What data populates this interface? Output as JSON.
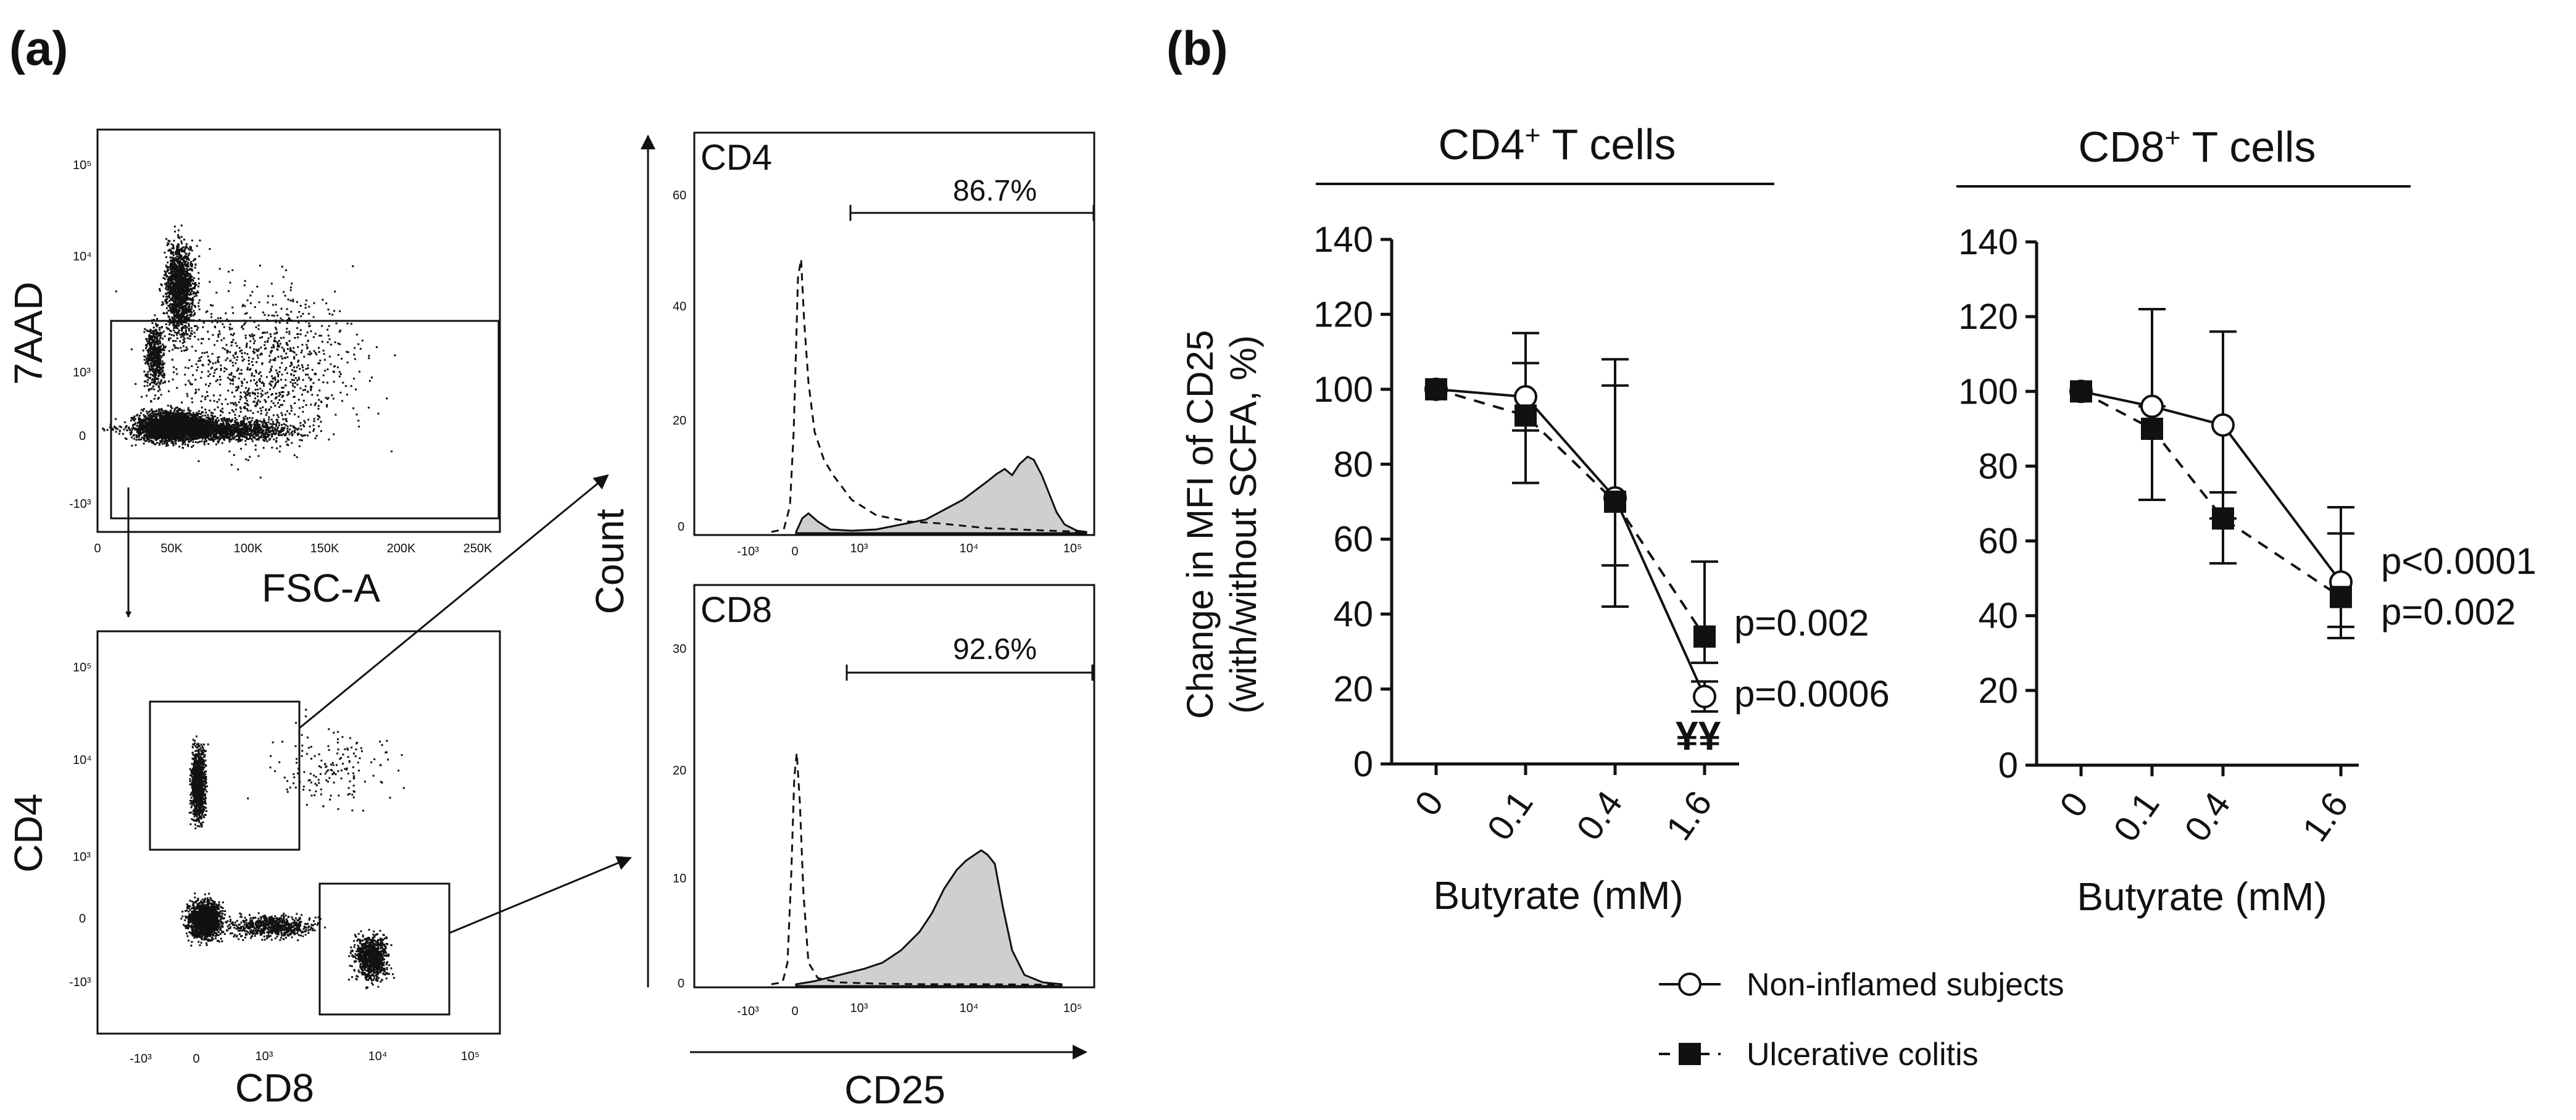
{
  "panel_labels": {
    "a": "(a)",
    "b": "(b)"
  },
  "flow": {
    "viability_plot": {
      "ylabel": "7AAD",
      "xlabel": "FSC-A",
      "yticks": [
        "10⁵",
        "10⁴",
        "10³",
        "0",
        "-10³"
      ],
      "xticks": [
        "0",
        "50K",
        "100K",
        "150K",
        "200K",
        "250K"
      ]
    },
    "cd4cd8_plot": {
      "ylabel": "CD4",
      "xlabel": "CD8",
      "yticks": [
        "10⁵",
        "10⁴",
        "10³",
        "0",
        "-10³"
      ],
      "xticks": [
        "-10³",
        "0",
        "10³",
        "10⁴",
        "10⁵"
      ]
    },
    "hist_cd4": {
      "label": "CD4",
      "gate_percent": "86.7%",
      "yticks": [
        "60",
        "40",
        "20",
        "0"
      ],
      "xticks": [
        "-10³",
        "0",
        "10³",
        "10⁴",
        "10⁵"
      ]
    },
    "hist_cd8": {
      "label": "CD8",
      "gate_percent": "92.6%",
      "yticks": [
        "30",
        "20",
        "10",
        "0"
      ],
      "xticks": [
        "-10³",
        "0",
        "10³",
        "10⁴",
        "10⁵"
      ]
    },
    "hist_ylabel": "Count",
    "hist_xlabel": "CD25"
  },
  "chart_data": [
    {
      "type": "line",
      "title_base": "CD4",
      "title_sup": "+",
      "title_rest": " T cells",
      "ylabel": "Change in MFI of CD25",
      "ylabel2": "(with/without SCFA, %)",
      "xlabel": "Butyrate (mM)",
      "categories": [
        "0",
        "0.1",
        "0.4",
        "1.6"
      ],
      "ylim": [
        0,
        140
      ],
      "yticks": [
        0,
        20,
        40,
        60,
        80,
        100,
        120,
        140
      ],
      "series": [
        {
          "name": "Non-inflamed subjects",
          "values": [
            100,
            98,
            71,
            18
          ],
          "err_lo": [
            100,
            89,
            42,
            14
          ],
          "err_hi": [
            100,
            115,
            108,
            22
          ]
        },
        {
          "name": "Ulcerative colitis",
          "values": [
            100,
            93,
            70,
            34
          ],
          "err_lo": [
            100,
            75,
            53,
            27
          ],
          "err_hi": [
            100,
            107,
            101,
            54
          ]
        }
      ],
      "annotations": [
        "p=0.002",
        "p=0.0006",
        "¥¥"
      ]
    },
    {
      "type": "line",
      "title_base": "CD8",
      "title_sup": "+",
      "title_rest": " T cells",
      "xlabel": "Butyrate (mM)",
      "categories": [
        "0",
        "0.1",
        "0.4",
        "1.6"
      ],
      "ylim": [
        0,
        140
      ],
      "yticks": [
        0,
        20,
        40,
        60,
        80,
        100,
        120,
        140
      ],
      "series": [
        {
          "name": "Non-inflamed subjects",
          "values": [
            100,
            96,
            91,
            49
          ],
          "err_lo": [
            100,
            71,
            66,
            37
          ],
          "err_hi": [
            100,
            122,
            116,
            62
          ]
        },
        {
          "name": "Ulcerative colitis",
          "values": [
            100,
            90,
            66,
            45
          ],
          "err_lo": [
            100,
            71,
            54,
            34
          ],
          "err_hi": [
            100,
            96,
            73,
            69
          ]
        }
      ],
      "annotations": [
        "p<0.0001",
        "p=0.002"
      ]
    }
  ],
  "legend": {
    "items": [
      "Non-inflamed subjects",
      "Ulcerative colitis"
    ]
  }
}
